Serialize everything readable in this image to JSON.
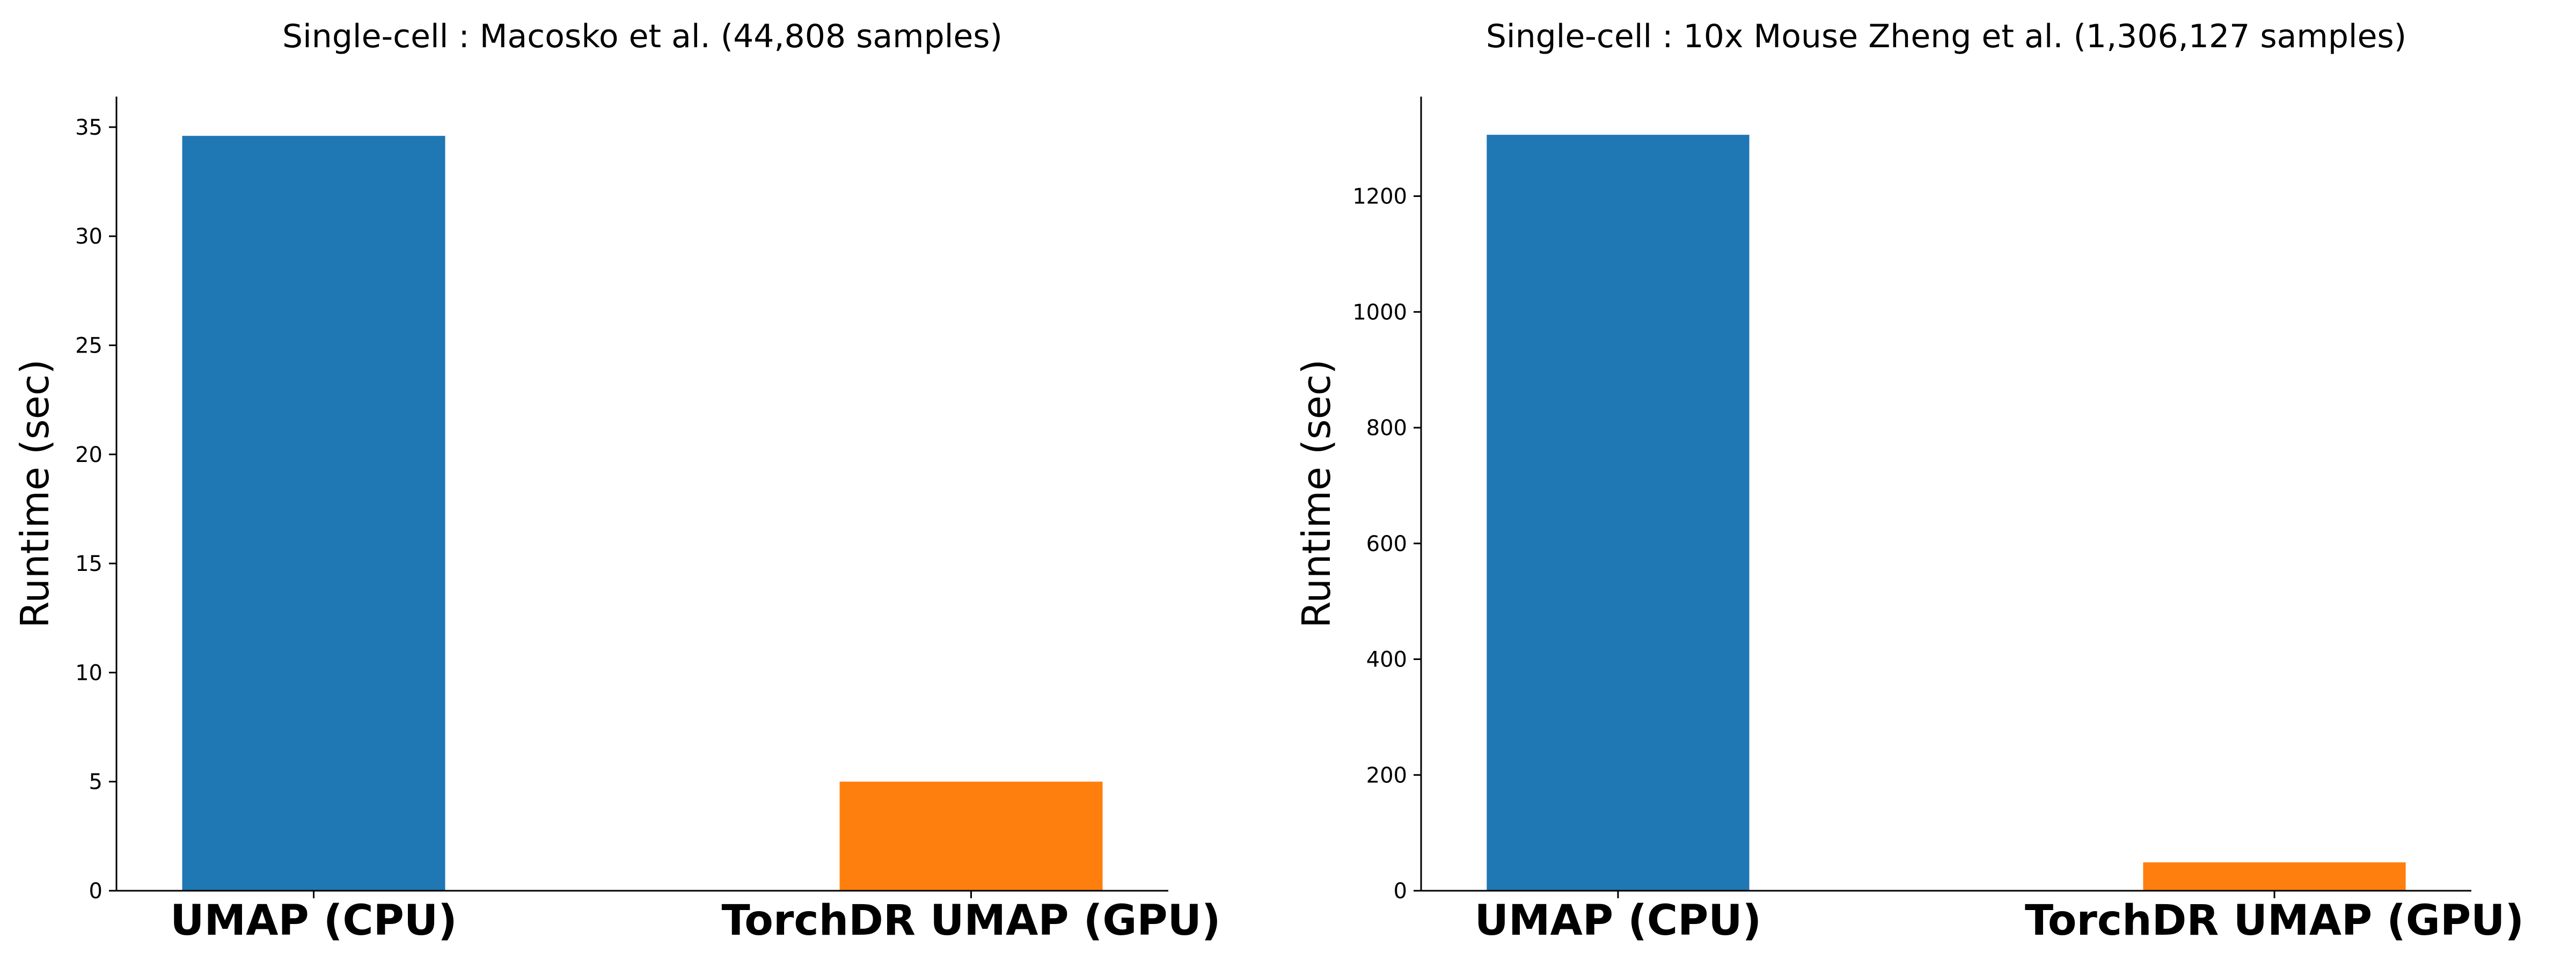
{
  "chart_data": [
    {
      "type": "bar",
      "title": "Single-cell : Macosko et al. (44,808 samples)",
      "xlabel": "",
      "ylabel": "Runtime (sec)",
      "categories": [
        "UMAP (CPU)",
        "TorchDR UMAP (GPU)"
      ],
      "values": [
        34.6,
        5.0
      ],
      "colors": [
        "#1f77b4",
        "#ff7f0e"
      ],
      "ylim": [
        0,
        36.4
      ],
      "yticks": [
        0,
        5,
        10,
        15,
        20,
        25,
        30,
        35
      ],
      "grid": false
    },
    {
      "type": "bar",
      "title": "Single-cell : 10x Mouse Zheng et al. (1,306,127 samples)",
      "xlabel": "",
      "ylabel": "Runtime (sec)",
      "categories": [
        "UMAP (CPU)",
        "TorchDR UMAP (GPU)"
      ],
      "values": [
        1306,
        49
      ],
      "colors": [
        "#1f77b4",
        "#ff7f0e"
      ],
      "ylim": [
        0,
        1372
      ],
      "yticks": [
        0,
        200,
        400,
        600,
        800,
        1000,
        1200
      ],
      "grid": false
    }
  ]
}
